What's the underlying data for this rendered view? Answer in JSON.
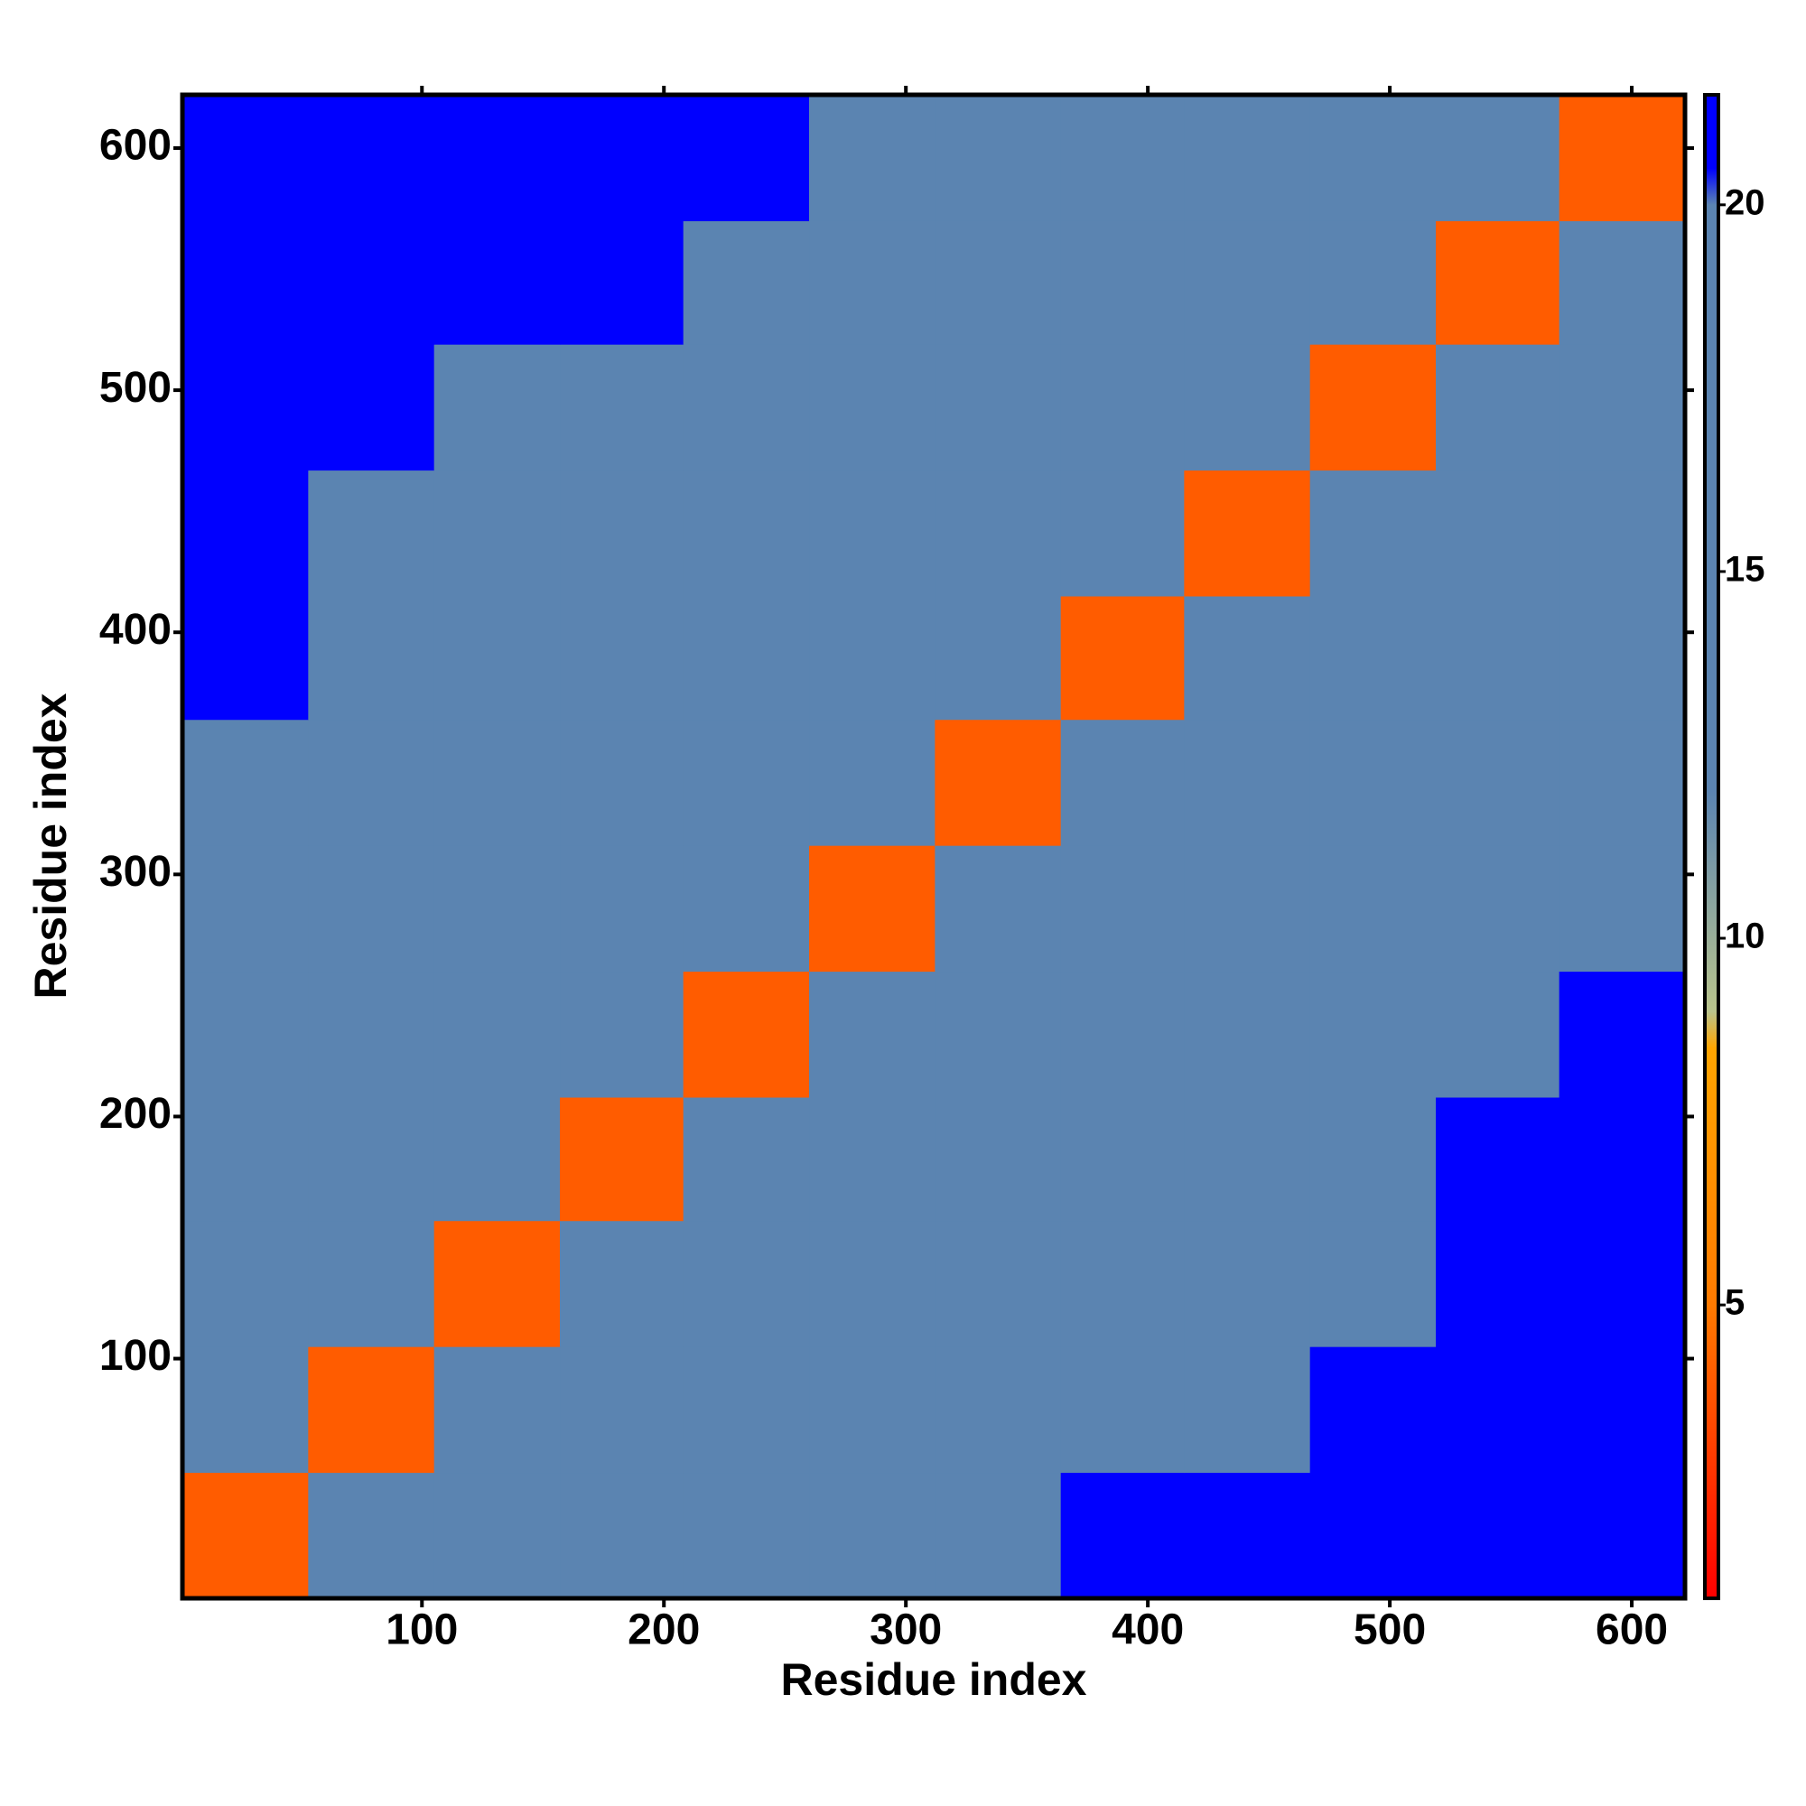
{
  "chart_data": {
    "type": "heatmap",
    "x_label": "Residue index",
    "y_label": "Residue index",
    "xbins": [
      1,
      53,
      105,
      157,
      208,
      260,
      312,
      364,
      415,
      467,
      519,
      570,
      622
    ],
    "ybins": [
      1,
      53,
      105,
      157,
      208,
      260,
      312,
      364,
      415,
      467,
      519,
      570,
      622
    ],
    "z": [
      [
        4,
        12,
        15,
        18,
        19,
        20,
        20,
        21,
        21,
        21,
        21,
        21
      ],
      [
        12,
        4,
        12,
        15,
        18,
        18,
        19,
        20,
        20,
        21,
        21,
        21
      ],
      [
        15,
        12,
        4,
        12,
        16,
        17,
        18,
        18,
        19,
        20,
        21,
        21
      ],
      [
        18,
        15,
        12,
        4,
        13,
        16,
        17,
        18,
        19,
        20,
        21,
        21
      ],
      [
        19,
        18,
        16,
        13,
        4,
        12,
        15,
        16,
        17,
        18,
        20,
        21
      ],
      [
        20,
        18,
        17,
        16,
        12,
        4,
        12,
        15,
        16,
        17,
        19,
        20
      ],
      [
        20,
        19,
        18,
        17,
        15,
        12,
        4,
        12,
        15,
        16,
        18,
        19
      ],
      [
        21,
        20,
        18,
        18,
        16,
        15,
        12,
        4,
        12,
        15,
        17,
        18
      ],
      [
        21,
        20,
        19,
        19,
        17,
        16,
        15,
        12,
        4,
        12,
        16,
        17
      ],
      [
        21,
        21,
        20,
        20,
        18,
        17,
        16,
        15,
        12,
        4,
        13,
        15
      ],
      [
        21,
        21,
        21,
        21,
        20,
        19,
        18,
        17,
        16,
        13,
        4,
        12
      ],
      [
        21,
        21,
        21,
        21,
        21,
        20,
        19,
        18,
        17,
        15,
        12,
        4
      ]
    ],
    "xlim": [
      1,
      622
    ],
    "ylim": [
      1,
      622
    ],
    "xticks": [
      100,
      200,
      300,
      400,
      500,
      600
    ],
    "yticks": [
      100,
      200,
      300,
      400,
      500,
      600
    ],
    "clim": [
      1,
      21.5
    ],
    "cticks": [
      5,
      10,
      15,
      20
    ],
    "colorscale": [
      [
        1,
        "#ff0000"
      ],
      [
        5,
        "#ff7a00"
      ],
      [
        8.5,
        "#ffa500"
      ],
      [
        9,
        "#b9c48c"
      ],
      [
        12,
        "#5b84b1"
      ],
      [
        20,
        "#5b84b1"
      ],
      [
        20.5,
        "#0000ff"
      ]
    ]
  }
}
